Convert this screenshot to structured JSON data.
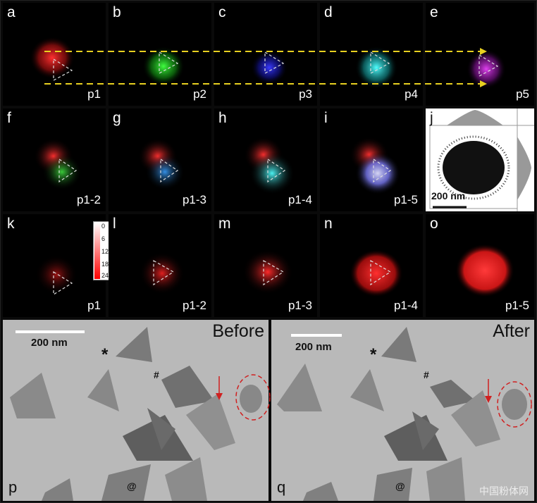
{
  "row1": [
    {
      "label": "a",
      "sub": "p1",
      "color": "#ff2a2a"
    },
    {
      "label": "b",
      "sub": "p2",
      "color": "#2ad62a"
    },
    {
      "label": "c",
      "sub": "p3",
      "color": "#2a2aff"
    },
    {
      "label": "d",
      "sub": "p4",
      "color": "#30e0e0"
    },
    {
      "label": "e",
      "sub": "p5",
      "color": "#c030d0"
    }
  ],
  "row2": [
    {
      "label": "f",
      "sub": "p1-2",
      "colors": [
        "#ff2a2a",
        "#2ad62a"
      ]
    },
    {
      "label": "g",
      "sub": "p1-3",
      "colors": [
        "#ff2a2a",
        "#2ad62a",
        "#3060ff"
      ]
    },
    {
      "label": "h",
      "sub": "p1-4",
      "colors": [
        "#ff2a2a",
        "#2ad62a",
        "#30e0e0"
      ]
    },
    {
      "label": "i",
      "sub": "p1-5",
      "colors": [
        "#ff2a2a",
        "#2ad62a",
        "#d0d0ff"
      ]
    }
  ],
  "panel_j": {
    "label": "j",
    "scalebar": "200 nm"
  },
  "row3": [
    {
      "label": "k",
      "sub": "p1",
      "intensity": 0.35
    },
    {
      "label": "l",
      "sub": "p1-2",
      "intensity": 0.5
    },
    {
      "label": "m",
      "sub": "p1-3",
      "intensity": 0.7
    },
    {
      "label": "n",
      "sub": "p1-4",
      "intensity": 0.85
    },
    {
      "label": "o",
      "sub": "p1-5",
      "intensity": 1.0
    }
  ],
  "colorbar": {
    "ticks": [
      "0",
      "6",
      "12",
      "18",
      "24"
    ]
  },
  "tem_before": {
    "label": "p",
    "title": "Before",
    "scalebar": "200 nm",
    "marks": {
      "star": "*",
      "hash": "#",
      "at": "@"
    }
  },
  "tem_after": {
    "label": "q",
    "title": "After",
    "scalebar": "200 nm",
    "marks": {
      "star": "*",
      "hash": "#",
      "at": "@"
    }
  },
  "watermark": "中国粉体网"
}
